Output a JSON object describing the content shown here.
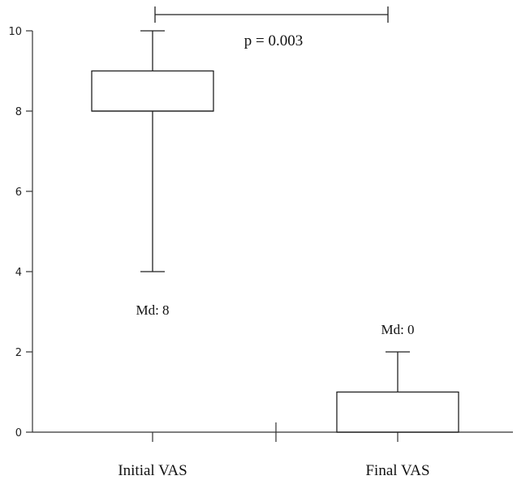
{
  "chart_data": {
    "type": "box",
    "categories": [
      "Initial VAS",
      "Final VAS"
    ],
    "boxes": [
      {
        "category": "Initial VAS",
        "whisker_low": 4,
        "q1": 8,
        "median": 8,
        "q3": 9,
        "whisker_high": 10,
        "median_label": "Md: 8"
      },
      {
        "category": "Final VAS",
        "whisker_low": 0,
        "q1": 0,
        "median": 0,
        "q3": 1,
        "whisker_high": 2,
        "median_label": "Md: 0"
      }
    ],
    "ylim": [
      0,
      10
    ],
    "yticks": [
      "0",
      "2",
      "4",
      "6",
      "8",
      "10"
    ],
    "xlabel": "",
    "ylabel": "",
    "title": "",
    "grid": false,
    "annotation": {
      "text": "p = 0.003",
      "between": [
        "Initial VAS",
        "Final VAS"
      ]
    },
    "colors": {
      "axis": "#333333",
      "box_fill": "#ffffff",
      "box_stroke": "#222222"
    }
  }
}
